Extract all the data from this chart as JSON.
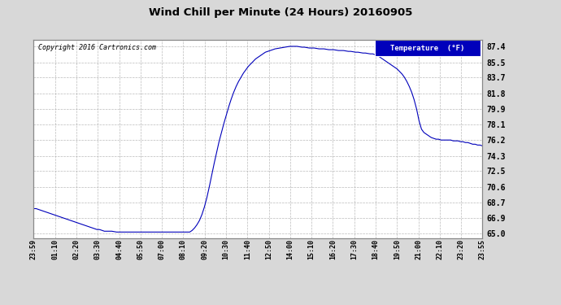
{
  "title": "Wind Chill per Minute (24 Hours) 20160905",
  "copyright": "Copyright 2016 Cartronics.com",
  "legend_label": "Temperature  (°F)",
  "line_color": "#0000bb",
  "bg_color": "#d8d8d8",
  "plot_bg_color": "#ffffff",
  "yticks": [
    65.0,
    66.9,
    68.7,
    70.6,
    72.5,
    74.3,
    76.2,
    78.1,
    79.9,
    81.8,
    83.7,
    85.5,
    87.4
  ],
  "ylim": [
    64.5,
    88.2
  ],
  "x_labels": [
    "23:59",
    "01:10",
    "02:20",
    "03:30",
    "04:40",
    "05:50",
    "07:00",
    "08:10",
    "09:20",
    "10:30",
    "11:40",
    "12:50",
    "14:00",
    "15:10",
    "16:20",
    "17:30",
    "18:40",
    "19:50",
    "21:00",
    "22:10",
    "23:20",
    "23:55"
  ],
  "temp_values": [
    68.0,
    68.0,
    67.9,
    67.8,
    67.7,
    67.6,
    67.5,
    67.4,
    67.3,
    67.2,
    67.1,
    67.0,
    66.9,
    66.8,
    66.7,
    66.6,
    66.5,
    66.4,
    66.3,
    66.2,
    66.1,
    66.0,
    65.9,
    65.8,
    65.7,
    65.6,
    65.5,
    65.5,
    65.4,
    65.3,
    65.3,
    65.3,
    65.3,
    65.25,
    65.2,
    65.2,
    65.2,
    65.2,
    65.2,
    65.2,
    65.2,
    65.2,
    65.2,
    65.2,
    65.2,
    65.2,
    65.2,
    65.2,
    65.2,
    65.2,
    65.2,
    65.2,
    65.2,
    65.2,
    65.2,
    65.2,
    65.2,
    65.2,
    65.2,
    65.2,
    65.2,
    65.2,
    65.2,
    65.2,
    65.2,
    65.4,
    65.7,
    66.1,
    66.6,
    67.3,
    68.2,
    69.3,
    70.6,
    72.0,
    73.4,
    74.7,
    76.0,
    77.1,
    78.2,
    79.2,
    80.2,
    81.1,
    81.9,
    82.6,
    83.2,
    83.7,
    84.2,
    84.6,
    85.0,
    85.3,
    85.6,
    85.9,
    86.1,
    86.3,
    86.5,
    86.7,
    86.8,
    86.9,
    87.0,
    87.1,
    87.15,
    87.2,
    87.25,
    87.3,
    87.35,
    87.4,
    87.4,
    87.4,
    87.4,
    87.35,
    87.3,
    87.3,
    87.25,
    87.2,
    87.2,
    87.2,
    87.15,
    87.1,
    87.1,
    87.1,
    87.05,
    87.0,
    87.0,
    87.0,
    86.95,
    86.9,
    86.9,
    86.9,
    86.85,
    86.8,
    86.8,
    86.75,
    86.7,
    86.7,
    86.65,
    86.6,
    86.6,
    86.55,
    86.5,
    86.5,
    86.4,
    86.3,
    86.1,
    85.9,
    85.7,
    85.5,
    85.3,
    85.1,
    84.9,
    84.7,
    84.4,
    84.1,
    83.7,
    83.2,
    82.6,
    81.9,
    81.0,
    79.9,
    78.5,
    77.5,
    77.1,
    76.9,
    76.7,
    76.5,
    76.4,
    76.3,
    76.3,
    76.2,
    76.2,
    76.2,
    76.2,
    76.2,
    76.1,
    76.1,
    76.1,
    76.0,
    76.0,
    75.9,
    75.9,
    75.8,
    75.7,
    75.7,
    75.6,
    75.6,
    75.5
  ]
}
